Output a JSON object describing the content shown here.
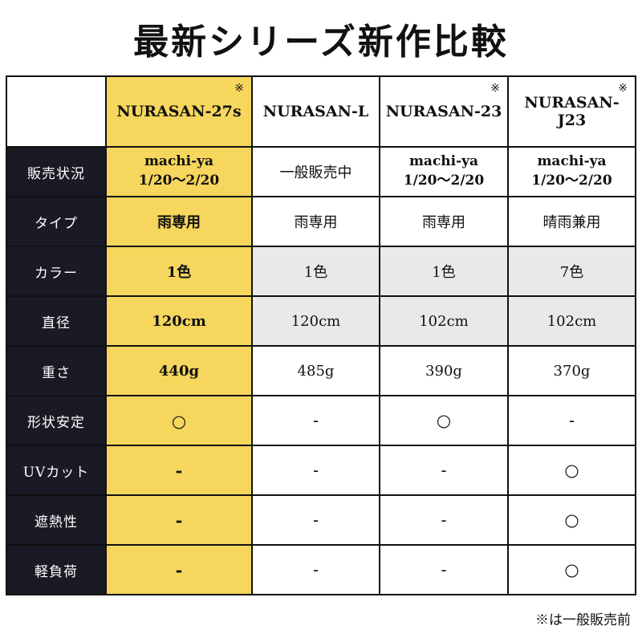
{
  "title": "最新シリーズ新作比較",
  "footnote": "※は一般販売前",
  "products": [
    {
      "name": "NURASAN-27s",
      "mark": "※",
      "highlight": true
    },
    {
      "name": "NURASAN-L",
      "mark": "",
      "highlight": false
    },
    {
      "name": "NURASAN-23",
      "mark": "※",
      "highlight": false
    },
    {
      "name": "NURASAN-J23",
      "mark": "※",
      "highlight": false
    }
  ],
  "rows": [
    {
      "label": "販売状況",
      "shaded": false,
      "cells": [
        [
          "machi-ya",
          "1/20〜2/20"
        ],
        [
          "一般販売中"
        ],
        [
          "machi-ya",
          "1/20〜2/20"
        ],
        [
          "machi-ya",
          "1/20〜2/20"
        ]
      ]
    },
    {
      "label": "タイプ",
      "shaded": false,
      "cells": [
        [
          "雨専用"
        ],
        [
          "雨専用"
        ],
        [
          "雨専用"
        ],
        [
          "晴雨兼用"
        ]
      ]
    },
    {
      "label": "カラー",
      "shaded": true,
      "cells": [
        [
          "1色"
        ],
        [
          "1色"
        ],
        [
          "1色"
        ],
        [
          "7色"
        ]
      ]
    },
    {
      "label": "直径",
      "shaded": true,
      "cells": [
        [
          "120cm"
        ],
        [
          "120cm"
        ],
        [
          "102cm"
        ],
        [
          "102cm"
        ]
      ]
    },
    {
      "label": "重さ",
      "shaded": false,
      "cells": [
        [
          "440g"
        ],
        [
          "485g"
        ],
        [
          "390g"
        ],
        [
          "370g"
        ]
      ]
    },
    {
      "label": "形状安定",
      "shaded": false,
      "cells": [
        [
          "○"
        ],
        [
          "-"
        ],
        [
          "○"
        ],
        [
          "-"
        ]
      ]
    },
    {
      "label": "UVカット",
      "shaded": false,
      "cells": [
        [
          "-"
        ],
        [
          "-"
        ],
        [
          "-"
        ],
        [
          "○"
        ]
      ]
    },
    {
      "label": "遮熱性",
      "shaded": false,
      "cells": [
        [
          "-"
        ],
        [
          "-"
        ],
        [
          "-"
        ],
        [
          "○"
        ]
      ]
    },
    {
      "label": "軽負荷",
      "shaded": false,
      "cells": [
        [
          "-"
        ],
        [
          "-"
        ],
        [
          "-"
        ],
        [
          "○"
        ]
      ]
    }
  ],
  "colors": {
    "highlight": "#f6d65c",
    "label_bg": "#1a1a24",
    "shaded_bg": "#e9e9e9",
    "border": "#111111"
  },
  "chart_data": {
    "type": "table",
    "title": "最新シリーズ新作比較",
    "columns": [
      "",
      "NURASAN-27s ※",
      "NURASAN-L",
      "NURASAN-23 ※",
      "NURASAN-J23 ※"
    ],
    "rows": [
      [
        "販売状況",
        "machi-ya 1/20〜2/20",
        "一般販売中",
        "machi-ya 1/20〜2/20",
        "machi-ya 1/20〜2/20"
      ],
      [
        "タイプ",
        "雨専用",
        "雨専用",
        "雨専用",
        "晴雨兼用"
      ],
      [
        "カラー",
        "1色",
        "1色",
        "1色",
        "7色"
      ],
      [
        "直径",
        "120cm",
        "120cm",
        "102cm",
        "102cm"
      ],
      [
        "重さ",
        "440g",
        "485g",
        "390g",
        "370g"
      ],
      [
        "形状安定",
        "○",
        "-",
        "○",
        "-"
      ],
      [
        "UVカット",
        "-",
        "-",
        "-",
        "○"
      ],
      [
        "遮熱性",
        "-",
        "-",
        "-",
        "○"
      ],
      [
        "軽負荷",
        "-",
        "-",
        "-",
        "○"
      ]
    ],
    "notes": "※は一般販売前。NURASAN-27s の列が黄色で強調表示。"
  }
}
